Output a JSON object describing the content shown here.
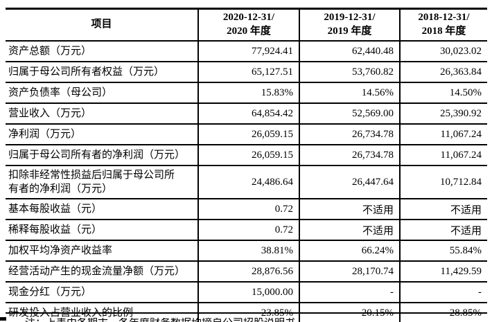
{
  "page": {
    "background": "#ffffff",
    "text_color": "#000000",
    "rule_color": "#000000"
  },
  "table": {
    "header": {
      "item_label": "项目",
      "periods": [
        {
          "line1": "2020-12-31/",
          "line2": "2020 年度"
        },
        {
          "line1": "2019-12-31/",
          "line2": "2019 年度"
        },
        {
          "line1": "2018-12-31/",
          "line2": "2018 年度"
        }
      ]
    },
    "rows": [
      {
        "label": "资产总额（万元）",
        "values": [
          "77,924.41",
          "62,440.48",
          "30,023.02"
        ]
      },
      {
        "label": "归属于母公司所有者权益（万元）",
        "values": [
          "65,127.51",
          "53,760.82",
          "26,363.84"
        ]
      },
      {
        "label": "资产负债率（母公司）",
        "values": [
          "15.83%",
          "14.56%",
          "14.50%"
        ]
      },
      {
        "label": "营业收入（万元）",
        "values": [
          "64,854.42",
          "52,569.00",
          "25,390.92"
        ]
      },
      {
        "label": "净利润（万元）",
        "values": [
          "26,059.15",
          "26,734.78",
          "11,067.24"
        ]
      },
      {
        "label": "归属于母公司所有者的净利润（万元）",
        "values": [
          "26,059.15",
          "26,734.78",
          "11,067.24"
        ]
      },
      {
        "label": "扣除非经常性损益后归属于母公司所\n有者的净利润（万元）",
        "tall": true,
        "values": [
          "24,486.64",
          "26,447.64",
          "10,712.84"
        ]
      },
      {
        "label": "基本每股收益（元）",
        "values": [
          "0.72",
          "不适用",
          "不适用"
        ]
      },
      {
        "label": "稀释每股收益（元）",
        "values": [
          "0.72",
          "不适用",
          "不适用"
        ]
      },
      {
        "label": "加权平均净资产收益率",
        "values": [
          "38.81%",
          "66.24%",
          "55.84%"
        ]
      },
      {
        "label": "经营活动产生的现金流量净额（万元）",
        "values": [
          "28,876.56",
          "28,170.74",
          "11,429.59"
        ]
      },
      {
        "label": "现金分红（万元）",
        "values": [
          "15,000.00",
          "-",
          "-"
        ]
      },
      {
        "label": "研发投入占营业收入的比例",
        "values": [
          "23.85%",
          "20.15%",
          "28.85%"
        ]
      }
    ]
  },
  "footnote_clipped": "注：上表中各期末、各年度财务数据均摘自公司招股说明书"
}
